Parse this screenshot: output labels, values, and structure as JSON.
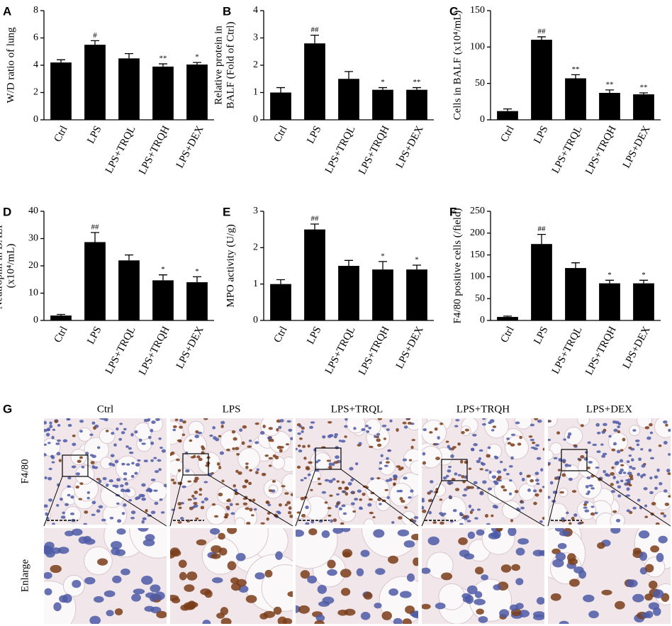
{
  "chart_data": [
    {
      "type": "bar",
      "panel_label": "A",
      "ylabel": [
        "W/D ratio of lung"
      ],
      "categories": [
        "Ctrl",
        "LPS",
        "LPS+TRQL",
        "LPS+TRQH",
        "LPS+DEX"
      ],
      "values": [
        4.2,
        5.5,
        4.5,
        3.9,
        4.05
      ],
      "errors": [
        0.2,
        0.3,
        0.35,
        0.2,
        0.15
      ],
      "annotations": [
        null,
        "#",
        null,
        "**",
        "*"
      ],
      "ylim": [
        0,
        8
      ],
      "yticks": [
        0,
        2,
        4,
        6,
        8
      ],
      "color": "#000000"
    },
    {
      "type": "bar",
      "panel_label": "B",
      "ylabel": [
        "Relative protein in",
        "BALF (Fold of Ctrl)"
      ],
      "categories": [
        "Ctrl",
        "LPS",
        "LPS+TRQL",
        "LPS+TRQH",
        "LPS+DEX"
      ],
      "values": [
        1.0,
        2.8,
        1.5,
        1.1,
        1.1
      ],
      "errors": [
        0.18,
        0.3,
        0.27,
        0.08,
        0.08
      ],
      "annotations": [
        null,
        "##",
        null,
        "*",
        "**"
      ],
      "ylim": [
        0,
        4
      ],
      "yticks": [
        0,
        1,
        2,
        3,
        4
      ],
      "color": "#000000"
    },
    {
      "type": "bar",
      "panel_label": "C",
      "ylabel": [
        "Cells in BALF (x10⁴/mL)"
      ],
      "categories": [
        "Ctrl",
        "LPS",
        "LPS+TRQL",
        "LPS+TRQH",
        "LPS+DEX"
      ],
      "values": [
        12,
        110,
        57,
        37,
        35
      ],
      "errors": [
        3,
        4,
        5,
        4,
        2
      ],
      "annotations": [
        null,
        "##",
        "**",
        "**",
        "**"
      ],
      "ylim": [
        0,
        150
      ],
      "yticks": [
        0,
        50,
        100,
        150
      ],
      "color": "#000000"
    },
    {
      "type": "bar",
      "panel_label": "D",
      "ylabel": [
        "Neutrophil in BALF",
        "(x10⁴/mL)"
      ],
      "categories": [
        "Ctrl",
        "LPS",
        "LPS+TRQL",
        "LPS+TRQH",
        "LPS+DEX"
      ],
      "values": [
        1.8,
        28.7,
        22,
        14.7,
        14
      ],
      "errors": [
        0.4,
        3.5,
        2,
        2,
        2
      ],
      "annotations": [
        null,
        "##",
        null,
        "*",
        "*"
      ],
      "ylim": [
        0,
        40
      ],
      "yticks": [
        0,
        10,
        20,
        30,
        40
      ],
      "color": "#000000"
    },
    {
      "type": "bar",
      "panel_label": "E",
      "ylabel": [
        "MPO activity (U/g)"
      ],
      "categories": [
        "Ctrl",
        "LPS",
        "LPS+TRQL",
        "LPS+TRQH",
        "LPS+DEX"
      ],
      "values": [
        1.0,
        2.5,
        1.5,
        1.4,
        1.4
      ],
      "errors": [
        0.12,
        0.15,
        0.15,
        0.22,
        0.12
      ],
      "annotations": [
        null,
        "##",
        null,
        "*",
        "*"
      ],
      "ylim": [
        0,
        3
      ],
      "yticks": [
        0,
        1,
        2,
        3
      ],
      "color": "#000000"
    },
    {
      "type": "bar",
      "panel_label": "F",
      "ylabel": [
        "F4/80 positive cells (/field)"
      ],
      "categories": [
        "Ctrl",
        "LPS",
        "LPS+TRQL",
        "LPS+TRQH",
        "LPS+DEX"
      ],
      "values": [
        8,
        175,
        120,
        85,
        85
      ],
      "errors": [
        2,
        22,
        12,
        7,
        7
      ],
      "annotations": [
        null,
        "##",
        null,
        "*",
        "*"
      ],
      "ylim": [
        0,
        250
      ],
      "yticks": [
        0,
        50,
        100,
        150,
        200,
        250
      ],
      "color": "#000000"
    }
  ],
  "panel_g": {
    "panel_label": "G",
    "columns": [
      "Ctrl",
      "LPS",
      "LPS+TRQL",
      "LPS+TRQH",
      "LPS+DEX"
    ],
    "rows": [
      "F4/80",
      "Enlarge"
    ]
  }
}
